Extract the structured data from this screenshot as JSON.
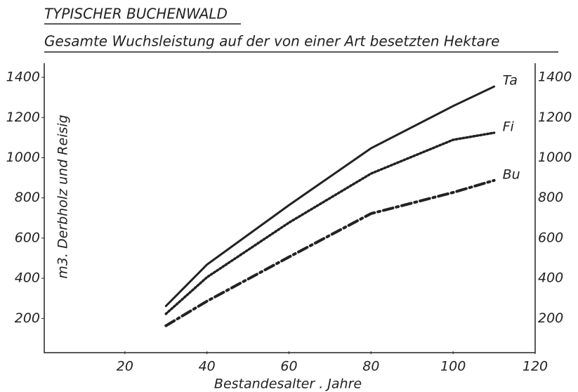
{
  "chart_data": {
    "type": "line",
    "title": "TYPISCHER BUCHENWALD",
    "subtitle": "Gesamte Wuchsleistung auf der von einer Art besetzten Hektare",
    "x_label": "Bestandesalter . Jahre",
    "y_label": "m3. Derbholz und Reisig",
    "x": [
      30,
      40,
      60,
      80,
      100,
      110
    ],
    "series": [
      {
        "name": "Ta",
        "color": "#222222",
        "style": "solid",
        "values": [
          262,
          468,
          764,
          1047,
          1257,
          1354
        ]
      },
      {
        "name": "Fi",
        "color": "#222222",
        "style": "dotted",
        "values": [
          223,
          405,
          677,
          921,
          1089,
          1124
        ]
      },
      {
        "name": "Bu",
        "color": "#222222",
        "style": "dashdot",
        "values": [
          164,
          286,
          506,
          722,
          827,
          887
        ]
      }
    ],
    "xlim": [
      0,
      120
    ],
    "xticks": [
      20,
      40,
      60,
      80,
      100,
      120
    ],
    "ylim": [
      30,
      1470
    ],
    "yticks": [
      200,
      400,
      600,
      800,
      1000,
      1200,
      1400
    ],
    "ticks_both_sides": true,
    "grid": false
  }
}
